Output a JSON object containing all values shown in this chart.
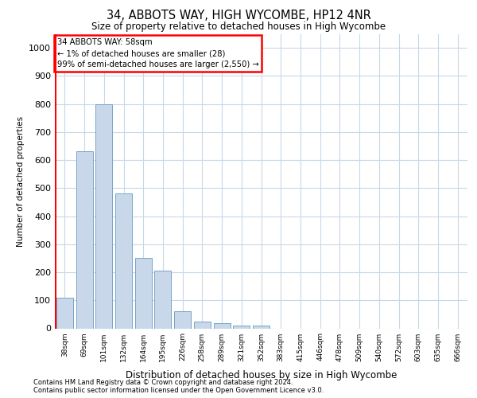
{
  "title": "34, ABBOTS WAY, HIGH WYCOMBE, HP12 4NR",
  "subtitle": "Size of property relative to detached houses in High Wycombe",
  "xlabel": "Distribution of detached houses by size in High Wycombe",
  "ylabel": "Number of detached properties",
  "bar_labels": [
    "38sqm",
    "69sqm",
    "101sqm",
    "132sqm",
    "164sqm",
    "195sqm",
    "226sqm",
    "258sqm",
    "289sqm",
    "321sqm",
    "352sqm",
    "383sqm",
    "415sqm",
    "446sqm",
    "478sqm",
    "509sqm",
    "540sqm",
    "572sqm",
    "603sqm",
    "635sqm",
    "666sqm"
  ],
  "bar_values": [
    110,
    630,
    800,
    480,
    250,
    205,
    60,
    25,
    18,
    10,
    10,
    0,
    0,
    0,
    0,
    0,
    0,
    0,
    0,
    0,
    0
  ],
  "bar_color": "#c8d8ea",
  "bar_edge_color": "#7aa3c8",
  "grid_color": "#c8d8e8",
  "ylim": [
    0,
    1050
  ],
  "yticks": [
    0,
    100,
    200,
    300,
    400,
    500,
    600,
    700,
    800,
    900,
    1000
  ],
  "red_line_x": -0.45,
  "annotation_text": "34 ABBOTS WAY: 58sqm\n← 1% of detached houses are smaller (28)\n99% of semi-detached houses are larger (2,550) →",
  "annotation_box_facecolor": "white",
  "annotation_box_edgecolor": "red",
  "footer_line1": "Contains HM Land Registry data © Crown copyright and database right 2024.",
  "footer_line2": "Contains public sector information licensed under the Open Government Licence v3.0.",
  "background_color": "white",
  "fig_width": 6.0,
  "fig_height": 5.0,
  "dpi": 100
}
